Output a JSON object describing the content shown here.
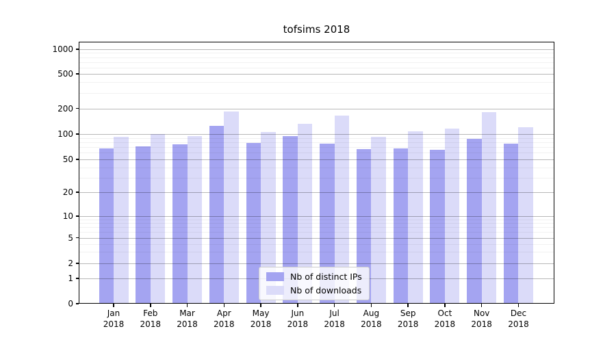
{
  "chart_data": {
    "type": "bar",
    "title": "tofsims 2018",
    "categories": [
      "Jan 2018",
      "Feb 2018",
      "Mar 2018",
      "Apr 2018",
      "May 2018",
      "Jun 2018",
      "Jul 2018",
      "Aug 2018",
      "Sep 2018",
      "Oct 2018",
      "Nov 2018",
      "Dec 2018"
    ],
    "series": [
      {
        "name": "Nb of distinct IPs",
        "color": "#a4a4f1",
        "values": [
          67,
          72,
          75,
          124,
          78,
          94,
          77,
          66,
          68,
          65,
          87,
          77
        ]
      },
      {
        "name": "Nb of downloads",
        "color": "#dbdbf9",
        "values": [
          92,
          100,
          94,
          183,
          106,
          132,
          165,
          93,
          107,
          116,
          181,
          121
        ]
      }
    ],
    "xlabel": "",
    "ylabel": "",
    "yscale": "symlog",
    "yticks": [
      0,
      1,
      2,
      5,
      10,
      20,
      50,
      100,
      200,
      500,
      1000
    ],
    "ylim": [
      0,
      1400
    ],
    "grid": "major and minor horizontal gridlines",
    "legend_position": "lower center"
  }
}
